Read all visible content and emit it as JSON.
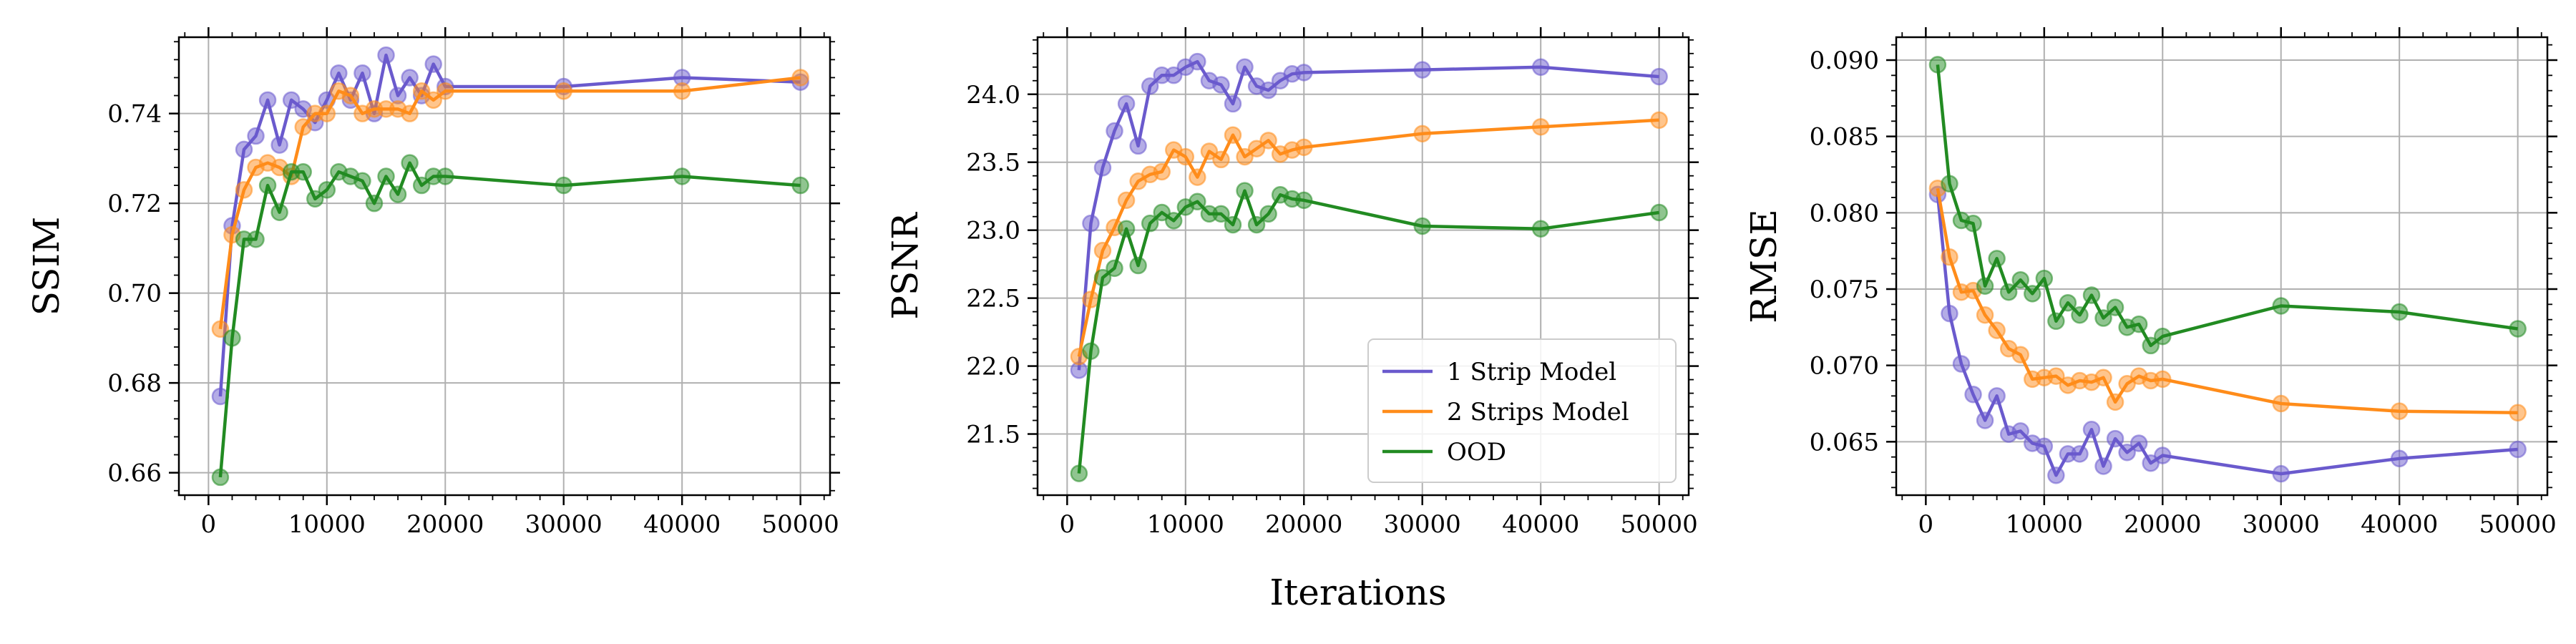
{
  "figure": {
    "xlabel": "Iterations",
    "legend": {
      "placement": "lower-right",
      "panel": 1
    }
  },
  "colors": {
    "1 Strip Model": "#6a5acd",
    "2 Strips Model": "#ff8c1a",
    "OOD": "#228b22"
  },
  "chart_data": [
    {
      "type": "line",
      "ylabel": "SSIM",
      "xlim": [
        -2500,
        52500
      ],
      "ylim": [
        0.655,
        0.757
      ],
      "xticks": [
        0,
        10000,
        20000,
        30000,
        40000,
        50000
      ],
      "yticks": [
        0.66,
        0.68,
        0.7,
        0.72,
        0.74
      ],
      "ytick_labels": [
        "0.66",
        "0.68",
        "0.70",
        "0.72",
        "0.74"
      ],
      "grid": true,
      "series": [
        {
          "name": "1 Strip Model",
          "x": [
            1000,
            2000,
            3000,
            4000,
            5000,
            6000,
            7000,
            8000,
            9000,
            10000,
            11000,
            12000,
            13000,
            14000,
            15000,
            16000,
            17000,
            18000,
            19000,
            20000,
            30000,
            40000,
            50000
          ],
          "y": [
            0.677,
            0.715,
            0.732,
            0.735,
            0.743,
            0.733,
            0.743,
            0.741,
            0.738,
            0.743,
            0.749,
            0.743,
            0.749,
            0.74,
            0.753,
            0.744,
            0.748,
            0.744,
            0.751,
            0.746,
            0.746,
            0.748,
            0.747
          ]
        },
        {
          "name": "2 Strips Model",
          "x": [
            1000,
            2000,
            3000,
            4000,
            5000,
            6000,
            7000,
            8000,
            9000,
            10000,
            11000,
            12000,
            13000,
            14000,
            15000,
            16000,
            17000,
            18000,
            19000,
            20000,
            30000,
            40000,
            50000
          ],
          "y": [
            0.692,
            0.713,
            0.723,
            0.728,
            0.729,
            0.728,
            0.726,
            0.737,
            0.74,
            0.74,
            0.745,
            0.744,
            0.74,
            0.741,
            0.741,
            0.741,
            0.74,
            0.745,
            0.743,
            0.745,
            0.745,
            0.745,
            0.748
          ]
        },
        {
          "name": "OOD",
          "x": [
            1000,
            2000,
            3000,
            4000,
            5000,
            6000,
            7000,
            8000,
            9000,
            10000,
            11000,
            12000,
            13000,
            14000,
            15000,
            16000,
            17000,
            18000,
            19000,
            20000,
            30000,
            40000,
            50000
          ],
          "y": [
            0.659,
            0.69,
            0.712,
            0.712,
            0.724,
            0.718,
            0.727,
            0.727,
            0.721,
            0.723,
            0.727,
            0.726,
            0.725,
            0.72,
            0.726,
            0.722,
            0.729,
            0.724,
            0.726,
            0.726,
            0.724,
            0.726,
            0.724
          ]
        }
      ]
    },
    {
      "type": "line",
      "ylabel": "PSNR",
      "xlim": [
        -2500,
        52500
      ],
      "ylim": [
        21.05,
        24.42
      ],
      "xticks": [
        0,
        10000,
        20000,
        30000,
        40000,
        50000
      ],
      "yticks": [
        21.5,
        22.0,
        22.5,
        23.0,
        23.5,
        24.0
      ],
      "ytick_labels": [
        "21.5",
        "22.0",
        "22.5",
        "23.0",
        "23.5",
        "24.0"
      ],
      "grid": true,
      "series": [
        {
          "name": "1 Strip Model",
          "x": [
            1000,
            2000,
            3000,
            4000,
            5000,
            6000,
            7000,
            8000,
            9000,
            10000,
            11000,
            12000,
            13000,
            14000,
            15000,
            16000,
            17000,
            18000,
            19000,
            20000,
            30000,
            40000,
            50000
          ],
          "y": [
            21.97,
            23.05,
            23.46,
            23.73,
            23.93,
            23.62,
            24.06,
            24.14,
            24.14,
            24.2,
            24.24,
            24.1,
            24.07,
            23.93,
            24.2,
            24.06,
            24.03,
            24.1,
            24.15,
            24.16,
            24.18,
            24.2,
            24.13
          ]
        },
        {
          "name": "2 Strips Model",
          "x": [
            1000,
            2000,
            3000,
            4000,
            5000,
            6000,
            7000,
            8000,
            9000,
            10000,
            11000,
            12000,
            13000,
            14000,
            15000,
            16000,
            17000,
            18000,
            19000,
            20000,
            30000,
            40000,
            50000
          ],
          "y": [
            22.07,
            22.49,
            22.85,
            23.02,
            23.22,
            23.36,
            23.41,
            23.43,
            23.59,
            23.54,
            23.39,
            23.58,
            23.52,
            23.7,
            23.54,
            23.6,
            23.66,
            23.56,
            23.59,
            23.61,
            23.71,
            23.76,
            23.81
          ]
        },
        {
          "name": "OOD",
          "x": [
            1000,
            2000,
            3000,
            4000,
            5000,
            6000,
            7000,
            8000,
            9000,
            10000,
            11000,
            12000,
            13000,
            14000,
            15000,
            16000,
            17000,
            18000,
            19000,
            20000,
            30000,
            40000,
            50000
          ],
          "y": [
            21.21,
            22.11,
            22.65,
            22.72,
            23.01,
            22.74,
            23.05,
            23.13,
            23.07,
            23.17,
            23.21,
            23.12,
            23.12,
            23.04,
            23.29,
            23.04,
            23.12,
            23.26,
            23.23,
            23.22,
            23.03,
            23.01,
            23.13
          ]
        }
      ]
    },
    {
      "type": "line",
      "ylabel": "RMSE",
      "xlim": [
        -2500,
        52500
      ],
      "ylim": [
        0.0615,
        0.0915
      ],
      "xticks": [
        0,
        10000,
        20000,
        30000,
        40000,
        50000
      ],
      "yticks": [
        0.065,
        0.07,
        0.075,
        0.08,
        0.085,
        0.09
      ],
      "ytick_labels": [
        "0.065",
        "0.070",
        "0.075",
        "0.080",
        "0.085",
        "0.090"
      ],
      "grid": true,
      "series": [
        {
          "name": "1 Strip Model",
          "x": [
            1000,
            2000,
            3000,
            4000,
            5000,
            6000,
            7000,
            8000,
            9000,
            10000,
            11000,
            12000,
            13000,
            14000,
            15000,
            16000,
            17000,
            18000,
            19000,
            20000,
            30000,
            40000,
            50000
          ],
          "y": [
            0.0812,
            0.0734,
            0.0701,
            0.0681,
            0.0664,
            0.068,
            0.0655,
            0.0657,
            0.0649,
            0.0647,
            0.0628,
            0.0642,
            0.0642,
            0.0658,
            0.0634,
            0.0652,
            0.0643,
            0.0649,
            0.0636,
            0.0641,
            0.0629,
            0.0639,
            0.0645
          ]
        },
        {
          "name": "2 Strips Model",
          "x": [
            1000,
            2000,
            3000,
            4000,
            5000,
            6000,
            7000,
            8000,
            9000,
            10000,
            11000,
            12000,
            13000,
            14000,
            15000,
            16000,
            17000,
            18000,
            19000,
            20000,
            30000,
            40000,
            50000
          ],
          "y": [
            0.0816,
            0.0771,
            0.0748,
            0.0749,
            0.0733,
            0.0723,
            0.0711,
            0.0707,
            0.0691,
            0.0692,
            0.0693,
            0.0687,
            0.069,
            0.0689,
            0.0692,
            0.0676,
            0.0688,
            0.0693,
            0.069,
            0.0691,
            0.0675,
            0.067,
            0.0669
          ]
        },
        {
          "name": "OOD",
          "x": [
            1000,
            2000,
            3000,
            4000,
            5000,
            6000,
            7000,
            8000,
            9000,
            10000,
            11000,
            12000,
            13000,
            14000,
            15000,
            16000,
            17000,
            18000,
            19000,
            20000,
            30000,
            40000,
            50000
          ],
          "y": [
            0.0897,
            0.0819,
            0.0795,
            0.0793,
            0.0752,
            0.077,
            0.0748,
            0.0756,
            0.0747,
            0.0757,
            0.0729,
            0.0741,
            0.0733,
            0.0746,
            0.0731,
            0.0738,
            0.0725,
            0.0727,
            0.0713,
            0.0719,
            0.0739,
            0.0735,
            0.0724
          ]
        }
      ]
    }
  ]
}
